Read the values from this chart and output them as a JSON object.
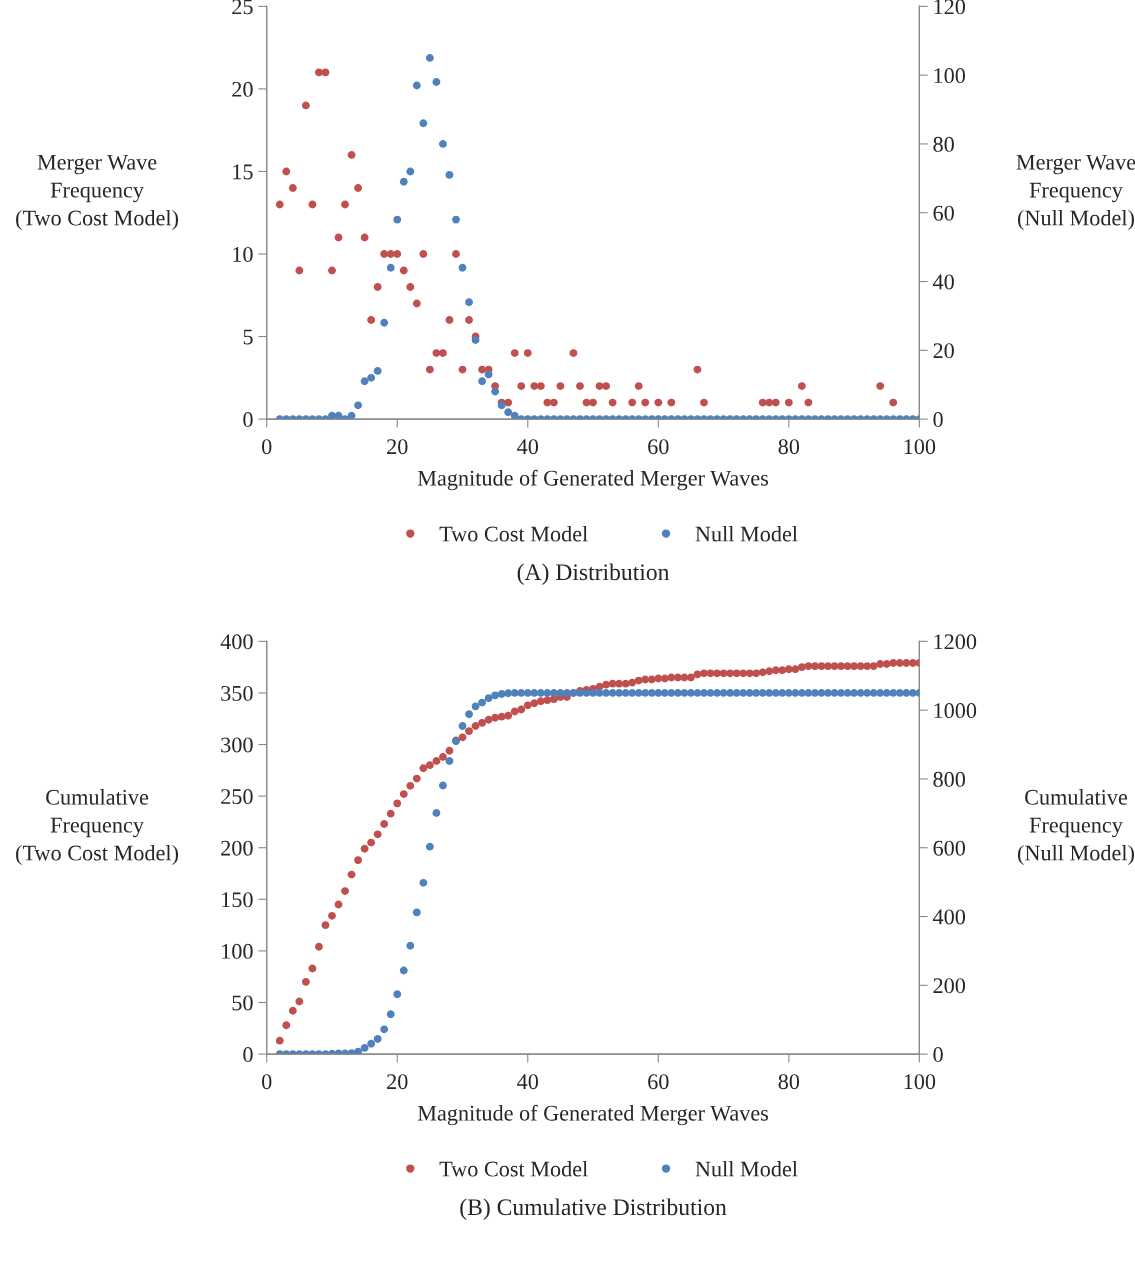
{
  "chart_data": [
    {
      "type": "scatter",
      "title": "(A) Distribution",
      "xlabel": "Magnitude of Generated Merger Waves",
      "ylabel": "Merger Wave\nFrequency\n(Two Cost Model)",
      "y2label": "Merger Wave\nFrequency\n(Null Model)",
      "x": [
        2,
        3,
        4,
        5,
        6,
        7,
        8,
        9,
        10,
        11,
        12,
        13,
        14,
        15,
        16,
        17,
        18,
        19,
        20,
        21,
        22,
        23,
        24,
        25,
        26,
        27,
        28,
        29,
        30,
        31,
        32,
        33,
        34,
        35,
        36,
        37,
        38,
        39,
        40,
        41,
        42,
        43,
        44,
        45,
        46,
        47,
        48,
        49,
        50,
        51,
        52,
        53,
        54,
        55,
        56,
        57,
        58,
        59,
        60,
        61,
        62,
        63,
        64,
        65,
        66,
        67,
        68,
        69,
        70,
        71,
        72,
        73,
        74,
        75,
        76,
        77,
        78,
        79,
        80,
        81,
        82,
        83,
        84,
        85,
        86,
        87,
        88,
        89,
        90,
        91,
        92,
        93,
        94,
        95,
        96,
        97,
        98,
        99,
        100
      ],
      "series": [
        {
          "name": "Two Cost Model",
          "color": "#c0504d",
          "values": [
            13,
            15,
            14,
            9,
            19,
            13,
            21,
            21,
            9,
            11,
            13,
            16,
            14,
            11,
            6,
            8,
            10,
            10,
            10,
            9,
            8,
            7,
            10,
            3,
            4,
            4,
            6,
            10,
            3,
            6,
            5,
            3,
            3,
            2,
            1,
            1,
            4,
            2,
            4,
            2,
            2,
            1,
            1,
            2,
            null,
            4,
            2,
            1,
            1,
            2,
            2,
            1,
            null,
            null,
            1,
            2,
            1,
            null,
            1,
            null,
            1,
            null,
            null,
            null,
            3,
            1,
            null,
            null,
            null,
            null,
            null,
            null,
            null,
            null,
            1,
            1,
            1,
            null,
            1,
            null,
            2,
            1,
            null,
            null,
            null,
            null,
            null,
            null,
            null,
            null,
            null,
            null,
            2,
            null,
            1,
            null,
            null,
            null,
            null
          ]
        },
        {
          "name": "Null Model",
          "color": "#4f81bd",
          "axis": "y2",
          "values": [
            0,
            0,
            0,
            0,
            0,
            0,
            0,
            0,
            1,
            1,
            0,
            1,
            4,
            11,
            12,
            14,
            28,
            44,
            58,
            69,
            72,
            97,
            86,
            105,
            98,
            80,
            71,
            58,
            44,
            34,
            23,
            11,
            13,
            8,
            4,
            2,
            1,
            0,
            0,
            0,
            0,
            0,
            0,
            0,
            0,
            0,
            0,
            0,
            0,
            0,
            0,
            0,
            0,
            0,
            0,
            0,
            0,
            0,
            0,
            0,
            0,
            0,
            0,
            0,
            0,
            0,
            0,
            0,
            0,
            0,
            0,
            0,
            0,
            0,
            0,
            0,
            0,
            0,
            0,
            0,
            0,
            0,
            0,
            0,
            0,
            0,
            0,
            0,
            0,
            0,
            0,
            0,
            0,
            0,
            0,
            0,
            0,
            0,
            0
          ]
        }
      ],
      "xlim": [
        0,
        100
      ],
      "xticks": [
        0,
        20,
        40,
        60,
        80,
        100
      ],
      "ylim": [
        0,
        25
      ],
      "yticks": [
        0,
        5,
        10,
        15,
        20,
        25
      ],
      "y2lim": [
        0,
        120
      ],
      "y2ticks": [
        0,
        20,
        40,
        60,
        80,
        100,
        120
      ],
      "marker": "circle",
      "legend": "bottom",
      "grid": false
    },
    {
      "type": "scatter",
      "title": "(B) Cumulative Distribution",
      "xlabel": "Magnitude of Generated Merger Waves",
      "ylabel": "Cumulative\nFrequency\n(Two Cost Model)",
      "y2label": "Cumulative\nFrequency\n(Null Model)",
      "x": [
        2,
        3,
        4,
        5,
        6,
        7,
        8,
        9,
        10,
        11,
        12,
        13,
        14,
        15,
        16,
        17,
        18,
        19,
        20,
        21,
        22,
        23,
        24,
        25,
        26,
        27,
        28,
        29,
        30,
        31,
        32,
        33,
        34,
        35,
        36,
        37,
        38,
        39,
        40,
        41,
        42,
        43,
        44,
        45,
        46,
        47,
        48,
        49,
        50,
        51,
        52,
        53,
        54,
        55,
        56,
        57,
        58,
        59,
        60,
        61,
        62,
        63,
        64,
        65,
        66,
        67,
        68,
        69,
        70,
        71,
        72,
        73,
        74,
        75,
        76,
        77,
        78,
        79,
        80,
        81,
        82,
        83,
        84,
        85,
        86,
        87,
        88,
        89,
        90,
        91,
        92,
        93,
        94,
        95,
        96,
        97,
        98,
        99,
        100
      ],
      "series": [
        {
          "name": "Two Cost Model",
          "color": "#c0504d",
          "values": [
            13,
            28,
            42,
            51,
            70,
            83,
            104,
            125,
            134,
            145,
            158,
            174,
            188,
            199,
            205,
            213,
            223,
            233,
            243,
            252,
            260,
            267,
            277,
            280,
            284,
            288,
            294,
            304,
            307,
            313,
            318,
            321,
            324,
            326,
            327,
            328,
            332,
            334,
            338,
            340,
            342,
            343,
            344,
            346,
            346,
            350,
            352,
            353,
            354,
            356,
            358,
            359,
            359,
            359,
            360,
            362,
            363,
            363,
            364,
            364,
            365,
            365,
            365,
            365,
            368,
            369,
            369,
            369,
            369,
            369,
            369,
            369,
            369,
            369,
            370,
            371,
            372,
            372,
            373,
            373,
            375,
            376,
            376,
            376,
            376,
            376,
            376,
            376,
            376,
            376,
            376,
            376,
            378,
            378,
            379,
            379,
            379,
            379,
            379
          ]
        },
        {
          "name": "Null Model",
          "color": "#4f81bd",
          "axis": "y2",
          "values": [
            0,
            0,
            0,
            0,
            0,
            0,
            0,
            0,
            1,
            2,
            2,
            3,
            7,
            18,
            30,
            44,
            72,
            116,
            174,
            243,
            315,
            412,
            498,
            603,
            701,
            781,
            852,
            910,
            954,
            988,
            1011,
            1022,
            1035,
            1043,
            1047,
            1049,
            1050,
            1050,
            1050,
            1050,
            1050,
            1050,
            1050,
            1050,
            1050,
            1050,
            1050,
            1050,
            1050,
            1050,
            1050,
            1050,
            1050,
            1050,
            1050,
            1050,
            1050,
            1050,
            1050,
            1050,
            1050,
            1050,
            1050,
            1050,
            1050,
            1050,
            1050,
            1050,
            1050,
            1050,
            1050,
            1050,
            1050,
            1050,
            1050,
            1050,
            1050,
            1050,
            1050,
            1050,
            1050,
            1050,
            1050,
            1050,
            1050,
            1050,
            1050,
            1050,
            1050,
            1050,
            1050,
            1050,
            1050,
            1050,
            1050,
            1050,
            1050,
            1050,
            1050
          ]
        }
      ],
      "xlim": [
        0,
        100
      ],
      "xticks": [
        0,
        20,
        40,
        60,
        80,
        100
      ],
      "ylim": [
        0,
        400
      ],
      "yticks": [
        0,
        50,
        100,
        150,
        200,
        250,
        300,
        350,
        400
      ],
      "y2lim": [
        0,
        1200
      ],
      "y2ticks": [
        0,
        200,
        400,
        600,
        800,
        1000,
        1200
      ],
      "marker": "circle",
      "legend": "bottom",
      "grid": false
    }
  ]
}
